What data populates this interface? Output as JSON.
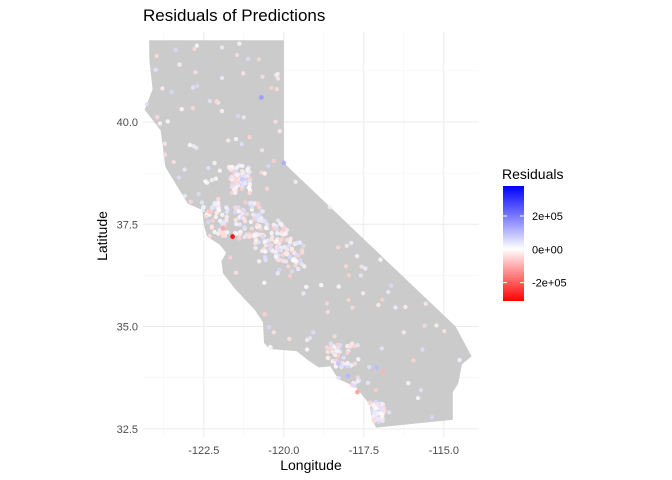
{
  "chart_data": {
    "type": "scatter",
    "title": "Residuals of Predictions",
    "xlabel": "Longitude",
    "ylabel": "Latitude",
    "xlim": [
      -124.4,
      -113.9
    ],
    "ylim": [
      32.3,
      42.2
    ],
    "x_ticks": [
      -122.5,
      -120.0,
      -117.5,
      -115.0
    ],
    "x_tick_labels": [
      "-122.5",
      "-120.0",
      "-117.5",
      "-115.0"
    ],
    "y_ticks": [
      32.5,
      35.0,
      37.5,
      40.0
    ],
    "y_tick_labels": [
      "32.5",
      "35.0",
      "37.5",
      "40.0"
    ],
    "grid": true,
    "background_map": "California state outline (grey fill)",
    "map_color": "#cbcbcb",
    "legend": {
      "title": "Residuals",
      "placement": "right",
      "type": "colorbar",
      "breaks": [
        200000,
        0,
        -200000
      ],
      "labels": [
        "2e+05",
        "0e+00",
        "-2e+05"
      ],
      "range": [
        -310000,
        380000
      ],
      "colors": {
        "low": "#ff0000",
        "mid": "#ffffff",
        "high": "#0000ff"
      }
    },
    "state_outline": [
      [
        -124.21,
        42.0
      ],
      [
        -120.0,
        42.0
      ],
      [
        -120.0,
        39.0
      ],
      [
        -114.63,
        35.0
      ],
      [
        -114.13,
        34.27
      ],
      [
        -114.43,
        34.08
      ],
      [
        -114.55,
        33.6
      ],
      [
        -114.72,
        33.4
      ],
      [
        -114.72,
        32.72
      ],
      [
        -117.12,
        32.53
      ],
      [
        -117.25,
        32.75
      ],
      [
        -117.32,
        33.1
      ],
      [
        -117.75,
        33.52
      ],
      [
        -118.3,
        33.72
      ],
      [
        -118.55,
        34.03
      ],
      [
        -118.9,
        34.0
      ],
      [
        -119.2,
        34.15
      ],
      [
        -119.6,
        34.4
      ],
      [
        -120.45,
        34.45
      ],
      [
        -120.62,
        34.6
      ],
      [
        -120.65,
        35.1
      ],
      [
        -120.9,
        35.4
      ],
      [
        -121.5,
        35.9
      ],
      [
        -121.9,
        36.3
      ],
      [
        -121.95,
        36.6
      ],
      [
        -121.8,
        36.8
      ],
      [
        -122.0,
        37.0
      ],
      [
        -122.4,
        37.2
      ],
      [
        -122.5,
        37.5
      ],
      [
        -122.55,
        37.85
      ],
      [
        -123.0,
        38.0
      ],
      [
        -123.7,
        38.9
      ],
      [
        -123.85,
        39.8
      ],
      [
        -124.35,
        40.3
      ],
      [
        -124.1,
        40.8
      ],
      [
        -124.2,
        41.5
      ],
      [
        -124.21,
        42.0
      ]
    ],
    "highlighted_points": [
      {
        "x": -121.6,
        "y": 37.2,
        "residual": -310000
      },
      {
        "x": -120.7,
        "y": 40.6,
        "residual": 150000
      },
      {
        "x": -120.0,
        "y": 39.0,
        "residual": 120000
      },
      {
        "x": -117.7,
        "y": 33.4,
        "residual": -120000
      },
      {
        "x": -117.1,
        "y": 34.0,
        "residual": 100000
      },
      {
        "x": -118.3,
        "y": 34.1,
        "residual": 90000
      },
      {
        "x": -121.9,
        "y": 37.4,
        "residual": -110000
      },
      {
        "x": -119.8,
        "y": 36.7,
        "residual": 60000
      },
      {
        "x": -122.3,
        "y": 37.8,
        "residual": -70000
      },
      {
        "x": -121.3,
        "y": 38.6,
        "residual": 80000
      },
      {
        "x": -116.9,
        "y": 33.9,
        "residual": -90000
      },
      {
        "x": -118.0,
        "y": 33.8,
        "residual": 110000
      },
      {
        "x": -120.6,
        "y": 35.3,
        "residual": -60000
      },
      {
        "x": -122.1,
        "y": 40.5,
        "residual": -50000
      }
    ]
  }
}
